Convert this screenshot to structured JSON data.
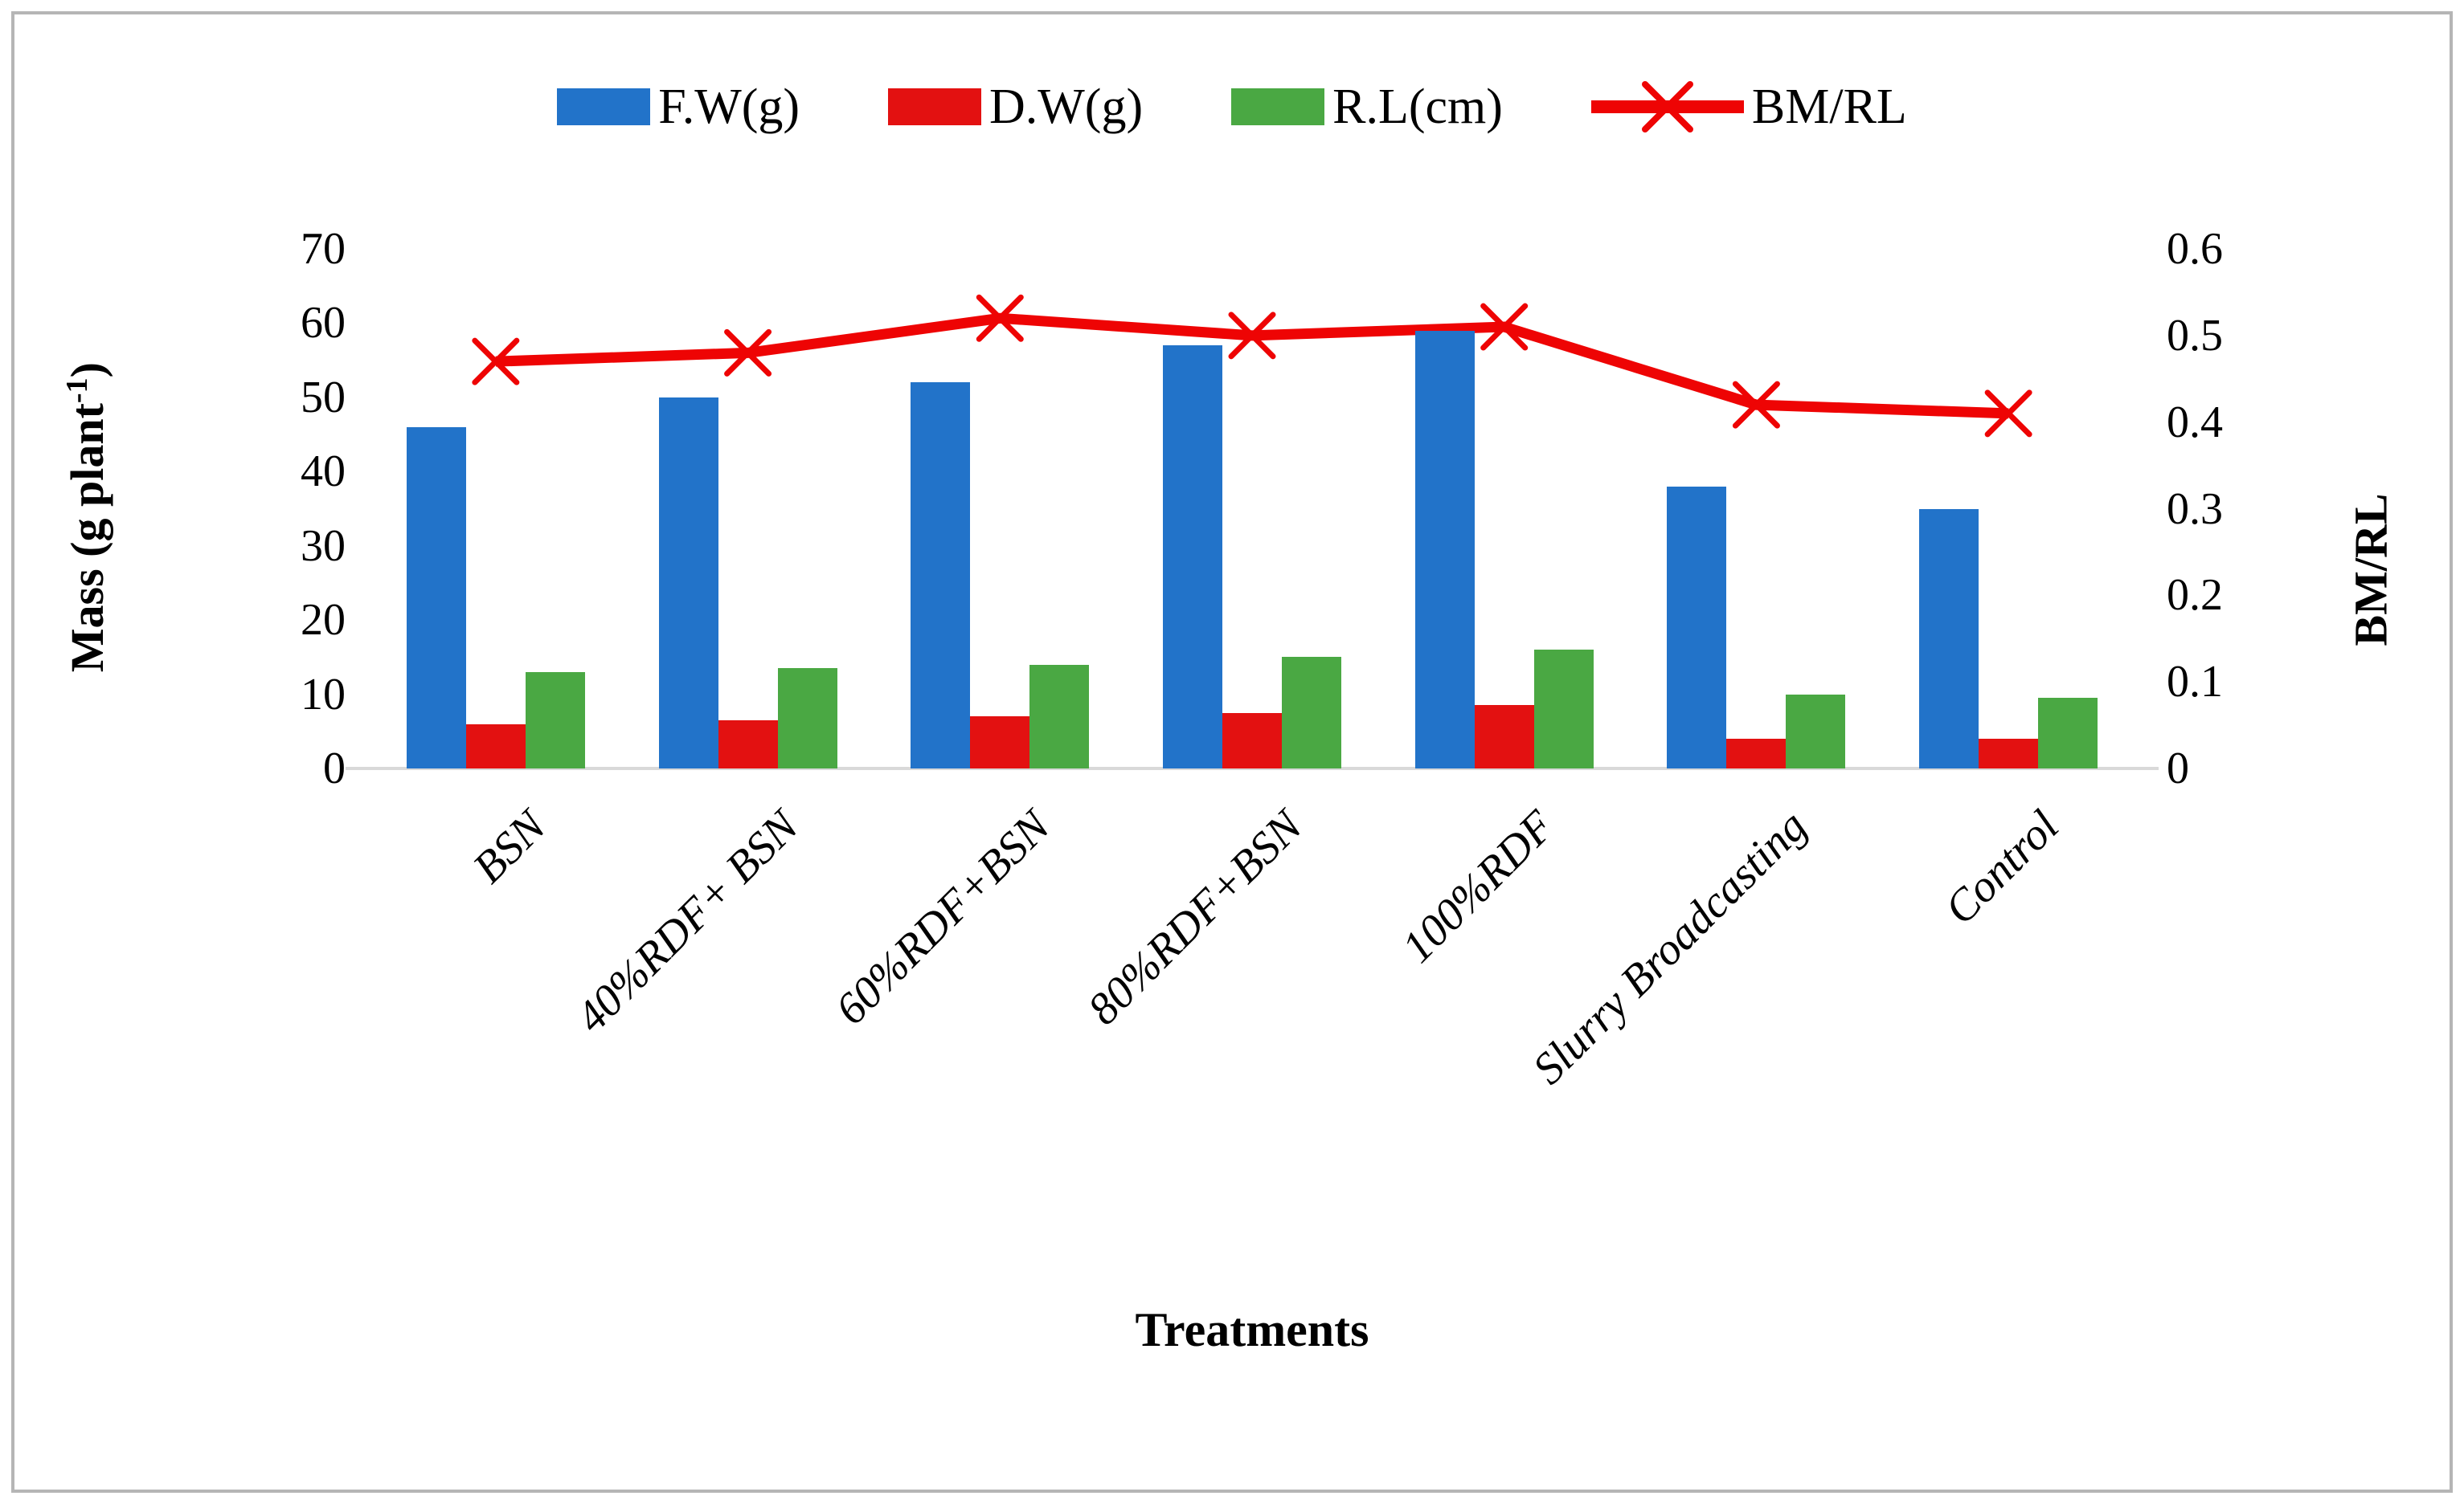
{
  "chart_data": {
    "type": "bar+line",
    "title": "",
    "xlabel": "Treatments",
    "categories": [
      "BSN",
      "40%RDF+ BSN",
      "60%RDF+BSN",
      "80%RDF+BSN",
      "100%RDF",
      "Slurry Broadcasting",
      "Control"
    ],
    "series": [
      {
        "name": "F.W(g)",
        "type": "bar",
        "axis": "left",
        "color": "#2273c9",
        "values": [
          46,
          50,
          52,
          57,
          59,
          38,
          35
        ]
      },
      {
        "name": "D.W(g)",
        "type": "bar",
        "axis": "left",
        "color": "#e31111",
        "values": [
          6,
          6.5,
          7,
          7.5,
          8.5,
          4,
          4
        ]
      },
      {
        "name": "R.L(cm)",
        "type": "bar",
        "axis": "left",
        "color": "#4aa843",
        "values": [
          13,
          13.5,
          14,
          15,
          16,
          10,
          9.5
        ]
      },
      {
        "name": "BM/RL",
        "type": "line",
        "axis": "right",
        "color": "#ee0404",
        "marker": "x",
        "values": [
          0.47,
          0.48,
          0.52,
          0.5,
          0.51,
          0.42,
          0.41
        ]
      }
    ],
    "left_axis": {
      "title_prefix": "Mass (g plant",
      "title_sup": "-1",
      "title_suffix": ")",
      "min": 0,
      "max": 70,
      "tick_labels": [
        "0",
        "10",
        "20",
        "30",
        "40",
        "50",
        "60",
        "70"
      ]
    },
    "right_axis": {
      "title": "BM/RL",
      "min": 0,
      "max": 0.6,
      "tick_labels": [
        "0",
        "0.1",
        "0.2",
        "0.3",
        "0.4",
        "0.5",
        "0.6"
      ]
    },
    "x_axis": {
      "title": "Treatments"
    },
    "legend_position": "top",
    "grid": "off",
    "baseline_color": "#d9d9d9"
  }
}
